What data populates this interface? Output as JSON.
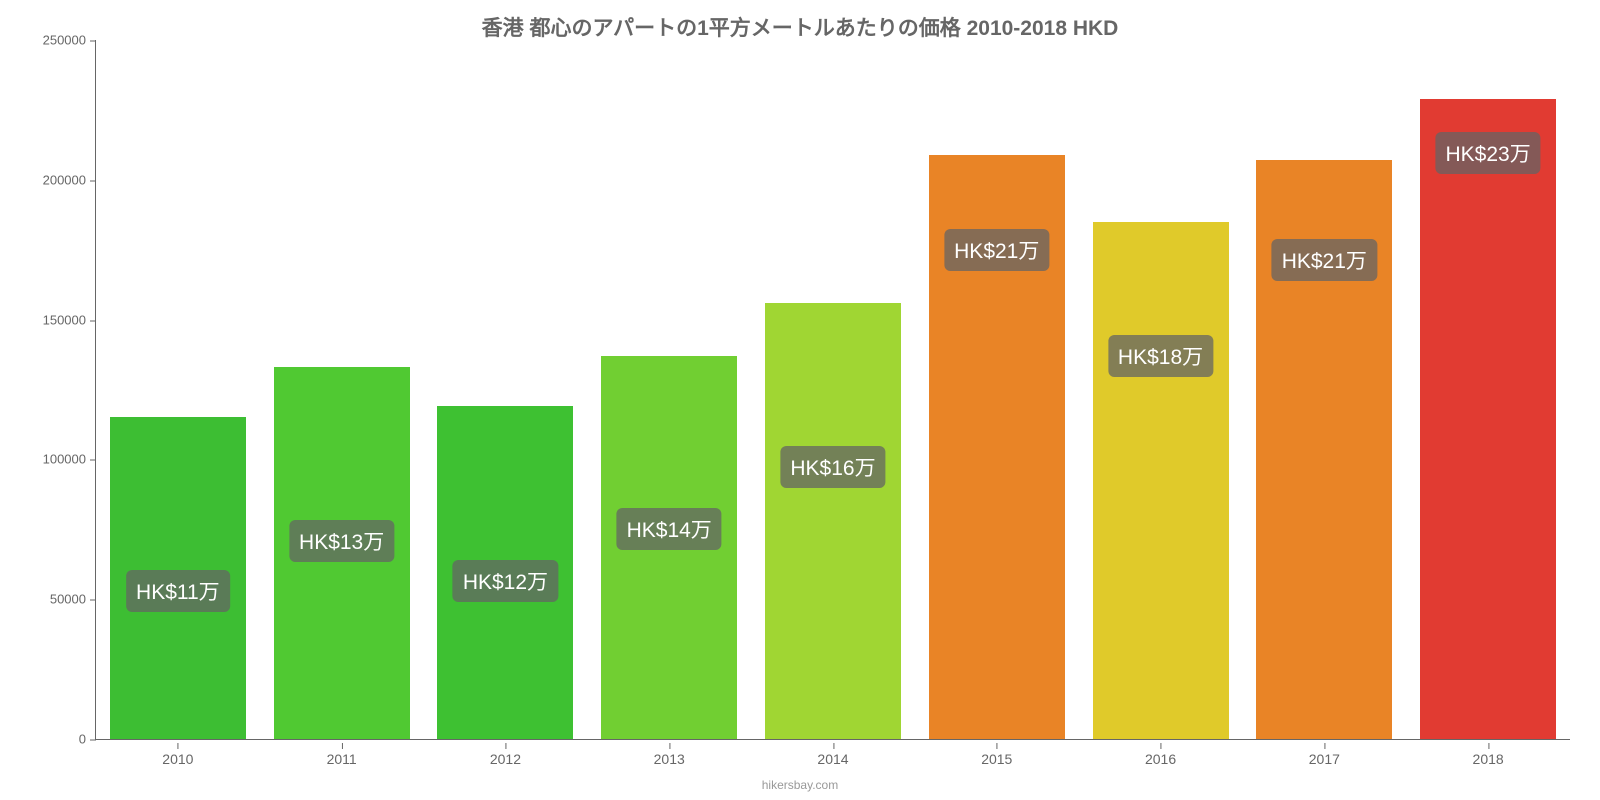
{
  "chart": {
    "type": "bar",
    "title": "香港 都心のアパートの1平方メートルあたりの価格 2010-2018 HKD",
    "title_fontsize": 21,
    "title_color": "#666666",
    "credit": "hikersbay.com",
    "credit_color": "#999999",
    "background_color": "#ffffff",
    "axis_color": "#666666",
    "tick_label_color": "#666666",
    "ylim": [
      0,
      250000
    ],
    "yticks": [
      0,
      50000,
      100000,
      150000,
      200000,
      250000
    ],
    "categories": [
      "2010",
      "2011",
      "2012",
      "2013",
      "2014",
      "2015",
      "2016",
      "2017",
      "2018"
    ],
    "values": [
      115000,
      133000,
      119000,
      137000,
      156000,
      209000,
      185000,
      207000,
      229000
    ],
    "bar_labels": [
      "HK$11万",
      "HK$13万",
      "HK$12万",
      "HK$14万",
      "HK$16万",
      "HK$21万",
      "HK$18万",
      "HK$21万",
      "HK$23万"
    ],
    "bar_colors": [
      "#3dbe33",
      "#50c932",
      "#3ec132",
      "#71cf32",
      "#a0d633",
      "#e98426",
      "#e0ca2a",
      "#e98426",
      "#e13b32"
    ],
    "bar_width_ratio": 0.83,
    "bar_label_bg": "rgba(100,100,100,0.75)",
    "bar_label_color": "#ffffff",
    "bar_label_fontsize": 21
  }
}
